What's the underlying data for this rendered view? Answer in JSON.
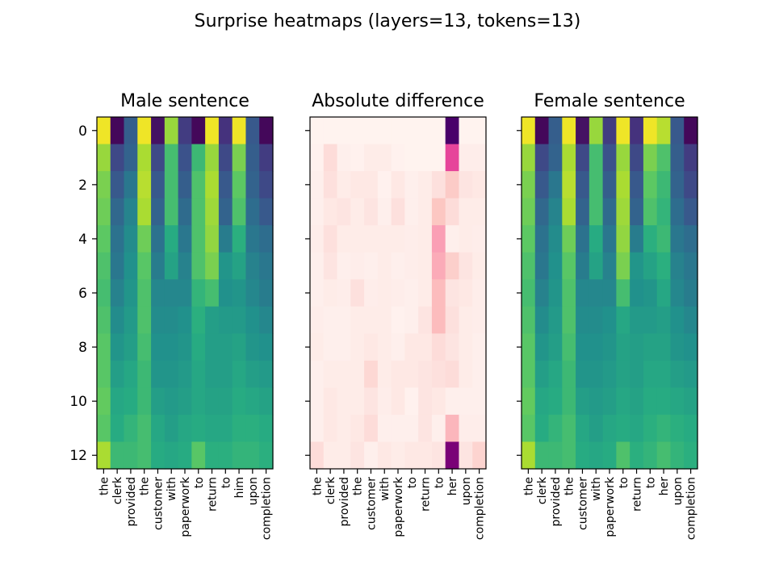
{
  "suptitle": "Surprise heatmaps (layers=13, tokens=13)",
  "chart_data": [
    {
      "type": "heatmap",
      "title": "Male sentence",
      "colormap": "viridis",
      "x_tokens": [
        "the",
        "clerk",
        "provided",
        "the",
        "customer",
        "with",
        "paperwork",
        "to",
        "return",
        "to",
        "him",
        "upon",
        "completion"
      ],
      "y_ticks": [
        0,
        2,
        4,
        6,
        8,
        10,
        12
      ],
      "values": [
        [
          0.98,
          0.02,
          0.3,
          0.98,
          0.05,
          0.85,
          0.18,
          0.02,
          0.98,
          0.15,
          0.98,
          0.28,
          0.02
        ],
        [
          0.85,
          0.22,
          0.32,
          0.88,
          0.22,
          0.7,
          0.25,
          0.68,
          0.85,
          0.22,
          0.8,
          0.3,
          0.18
        ],
        [
          0.8,
          0.28,
          0.4,
          0.9,
          0.28,
          0.7,
          0.3,
          0.72,
          0.88,
          0.28,
          0.75,
          0.32,
          0.22
        ],
        [
          0.78,
          0.34,
          0.45,
          0.88,
          0.32,
          0.7,
          0.35,
          0.72,
          0.86,
          0.32,
          0.72,
          0.36,
          0.28
        ],
        [
          0.75,
          0.38,
          0.48,
          0.78,
          0.38,
          0.62,
          0.4,
          0.72,
          0.84,
          0.42,
          0.64,
          0.4,
          0.36
        ],
        [
          0.72,
          0.4,
          0.5,
          0.74,
          0.42,
          0.58,
          0.44,
          0.72,
          0.8,
          0.52,
          0.58,
          0.44,
          0.4
        ],
        [
          0.7,
          0.44,
          0.52,
          0.72,
          0.46,
          0.46,
          0.46,
          0.66,
          0.7,
          0.5,
          0.52,
          0.46,
          0.42
        ],
        [
          0.72,
          0.48,
          0.54,
          0.72,
          0.48,
          0.48,
          0.5,
          0.64,
          0.56,
          0.54,
          0.54,
          0.5,
          0.46
        ],
        [
          0.74,
          0.52,
          0.56,
          0.7,
          0.5,
          0.5,
          0.52,
          0.62,
          0.56,
          0.56,
          0.58,
          0.52,
          0.5
        ],
        [
          0.74,
          0.56,
          0.6,
          0.68,
          0.52,
          0.52,
          0.54,
          0.6,
          0.56,
          0.56,
          0.6,
          0.56,
          0.54
        ],
        [
          0.76,
          0.6,
          0.62,
          0.68,
          0.56,
          0.54,
          0.56,
          0.6,
          0.58,
          0.58,
          0.62,
          0.6,
          0.58
        ],
        [
          0.74,
          0.62,
          0.66,
          0.7,
          0.6,
          0.56,
          0.6,
          0.62,
          0.6,
          0.6,
          0.64,
          0.64,
          0.62
        ],
        [
          0.88,
          0.68,
          0.68,
          0.7,
          0.62,
          0.6,
          0.62,
          0.74,
          0.64,
          0.64,
          0.66,
          0.66,
          0.64
        ]
      ]
    },
    {
      "type": "heatmap",
      "title": "Absolute difference",
      "colormap": "RdPu",
      "x_tokens": [
        "the",
        "clerk",
        "provided",
        "the",
        "customer",
        "with",
        "paperwork",
        "to",
        "return",
        "to",
        "her",
        "upon",
        "completion"
      ],
      "y_ticks": [
        0,
        2,
        4,
        6,
        8,
        10,
        12
      ],
      "values": [
        [
          0.02,
          0.02,
          0.02,
          0.02,
          0.02,
          0.02,
          0.02,
          0.02,
          0.02,
          0.02,
          1.0,
          0.02,
          0.02
        ],
        [
          0.03,
          0.14,
          0.04,
          0.03,
          0.06,
          0.06,
          0.03,
          0.02,
          0.02,
          0.02,
          0.58,
          0.05,
          0.05
        ],
        [
          0.04,
          0.12,
          0.06,
          0.08,
          0.08,
          0.03,
          0.08,
          0.04,
          0.06,
          0.12,
          0.22,
          0.1,
          0.08
        ],
        [
          0.04,
          0.08,
          0.1,
          0.06,
          0.1,
          0.04,
          0.12,
          0.04,
          0.06,
          0.24,
          0.14,
          0.06,
          0.06
        ],
        [
          0.05,
          0.12,
          0.06,
          0.06,
          0.06,
          0.06,
          0.06,
          0.05,
          0.06,
          0.38,
          0.04,
          0.06,
          0.05
        ],
        [
          0.04,
          0.1,
          0.04,
          0.05,
          0.04,
          0.06,
          0.04,
          0.05,
          0.06,
          0.34,
          0.2,
          0.1,
          0.06
        ],
        [
          0.04,
          0.06,
          0.05,
          0.12,
          0.05,
          0.06,
          0.05,
          0.04,
          0.06,
          0.28,
          0.1,
          0.08,
          0.05
        ],
        [
          0.05,
          0.04,
          0.04,
          0.06,
          0.06,
          0.06,
          0.03,
          0.04,
          0.1,
          0.28,
          0.12,
          0.06,
          0.05
        ],
        [
          0.06,
          0.04,
          0.04,
          0.06,
          0.08,
          0.06,
          0.04,
          0.08,
          0.08,
          0.14,
          0.1,
          0.06,
          0.04
        ],
        [
          0.04,
          0.06,
          0.06,
          0.06,
          0.16,
          0.06,
          0.08,
          0.08,
          0.1,
          0.12,
          0.14,
          0.06,
          0.04
        ],
        [
          0.04,
          0.08,
          0.06,
          0.06,
          0.1,
          0.05,
          0.08,
          0.03,
          0.1,
          0.08,
          0.04,
          0.04,
          0.04
        ],
        [
          0.04,
          0.08,
          0.06,
          0.08,
          0.14,
          0.04,
          0.04,
          0.04,
          0.1,
          0.04,
          0.3,
          0.05,
          0.05
        ],
        [
          0.14,
          0.06,
          0.06,
          0.1,
          0.04,
          0.08,
          0.06,
          0.08,
          0.08,
          0.1,
          0.88,
          0.1,
          0.18
        ]
      ]
    },
    {
      "type": "heatmap",
      "title": "Female sentence",
      "colormap": "viridis",
      "x_tokens": [
        "the",
        "clerk",
        "provided",
        "the",
        "customer",
        "with",
        "paperwork",
        "to",
        "return",
        "to",
        "her",
        "upon",
        "completion"
      ],
      "y_ticks": [
        0,
        2,
        4,
        6,
        8,
        10,
        12
      ],
      "values": [
        [
          0.98,
          0.02,
          0.3,
          0.98,
          0.05,
          0.85,
          0.18,
          0.98,
          0.15,
          0.98,
          0.9,
          0.28,
          0.02
        ],
        [
          0.85,
          0.22,
          0.32,
          0.88,
          0.22,
          0.7,
          0.25,
          0.85,
          0.22,
          0.8,
          0.72,
          0.3,
          0.18
        ],
        [
          0.8,
          0.28,
          0.4,
          0.9,
          0.28,
          0.7,
          0.3,
          0.88,
          0.28,
          0.75,
          0.68,
          0.32,
          0.22
        ],
        [
          0.78,
          0.34,
          0.45,
          0.88,
          0.32,
          0.7,
          0.35,
          0.86,
          0.32,
          0.72,
          0.66,
          0.36,
          0.28
        ],
        [
          0.75,
          0.38,
          0.48,
          0.78,
          0.38,
          0.62,
          0.4,
          0.84,
          0.42,
          0.64,
          0.68,
          0.4,
          0.36
        ],
        [
          0.72,
          0.4,
          0.5,
          0.74,
          0.42,
          0.58,
          0.44,
          0.8,
          0.52,
          0.58,
          0.64,
          0.44,
          0.4
        ],
        [
          0.7,
          0.44,
          0.52,
          0.72,
          0.46,
          0.46,
          0.46,
          0.7,
          0.5,
          0.52,
          0.6,
          0.46,
          0.42
        ],
        [
          0.72,
          0.48,
          0.54,
          0.72,
          0.48,
          0.48,
          0.5,
          0.6,
          0.54,
          0.54,
          0.56,
          0.5,
          0.46
        ],
        [
          0.74,
          0.52,
          0.56,
          0.7,
          0.5,
          0.5,
          0.52,
          0.58,
          0.56,
          0.58,
          0.58,
          0.52,
          0.5
        ],
        [
          0.74,
          0.56,
          0.6,
          0.68,
          0.52,
          0.52,
          0.54,
          0.58,
          0.56,
          0.6,
          0.6,
          0.56,
          0.54
        ],
        [
          0.76,
          0.6,
          0.62,
          0.68,
          0.56,
          0.54,
          0.56,
          0.6,
          0.58,
          0.62,
          0.62,
          0.6,
          0.58
        ],
        [
          0.74,
          0.62,
          0.66,
          0.7,
          0.6,
          0.56,
          0.6,
          0.62,
          0.6,
          0.64,
          0.66,
          0.64,
          0.62
        ],
        [
          0.88,
          0.68,
          0.68,
          0.7,
          0.62,
          0.6,
          0.62,
          0.72,
          0.64,
          0.66,
          0.7,
          0.66,
          0.64
        ]
      ]
    }
  ]
}
